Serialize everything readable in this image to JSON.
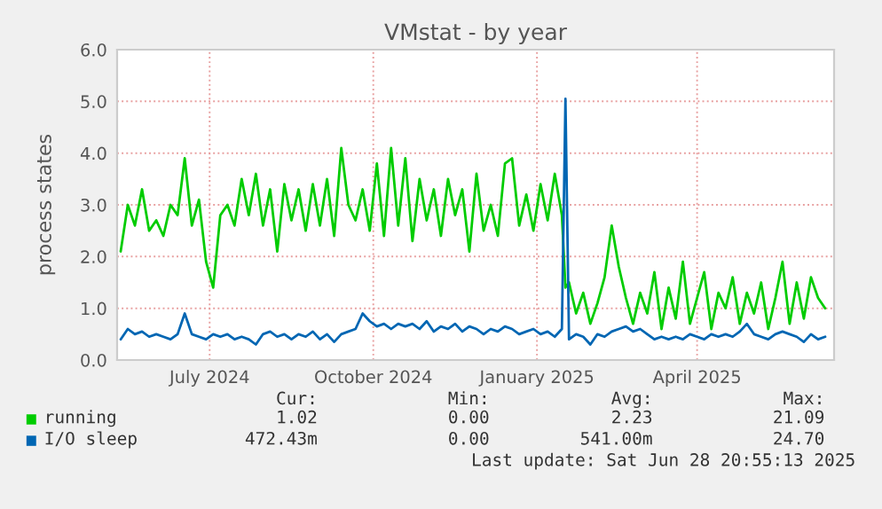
{
  "chart_data": {
    "type": "line",
    "title": "VMstat - by year",
    "ylabel": "process states",
    "x": [
      "2024-05-27",
      "2024-05-31",
      "2024-06-04",
      "2024-06-08",
      "2024-06-12",
      "2024-06-16",
      "2024-06-20",
      "2024-06-24",
      "2024-06-28",
      "2024-07-02",
      "2024-07-06",
      "2024-07-10",
      "2024-07-14",
      "2024-07-18",
      "2024-07-22",
      "2024-07-26",
      "2024-07-30",
      "2024-08-03",
      "2024-08-07",
      "2024-08-11",
      "2024-08-15",
      "2024-08-19",
      "2024-08-23",
      "2024-08-27",
      "2024-08-31",
      "2024-09-04",
      "2024-09-08",
      "2024-09-12",
      "2024-09-16",
      "2024-09-20",
      "2024-09-24",
      "2024-09-28",
      "2024-10-02",
      "2024-10-06",
      "2024-10-10",
      "2024-10-14",
      "2024-10-18",
      "2024-10-22",
      "2024-10-26",
      "2024-10-30",
      "2024-11-03",
      "2024-11-07",
      "2024-11-11",
      "2024-11-15",
      "2024-11-19",
      "2024-11-23",
      "2024-11-27",
      "2024-12-01",
      "2024-12-05",
      "2024-12-09",
      "2024-12-13",
      "2024-12-17",
      "2024-12-21",
      "2024-12-25",
      "2024-12-29",
      "2025-01-02",
      "2025-01-06",
      "2025-01-10",
      "2025-01-14",
      "2025-01-18",
      "2025-01-22",
      "2025-01-26",
      "2025-01-30",
      "2025-02-01",
      "2025-02-03",
      "2025-02-07",
      "2025-02-11",
      "2025-02-15",
      "2025-02-19",
      "2025-02-23",
      "2025-02-27",
      "2025-03-03",
      "2025-03-07",
      "2025-03-11",
      "2025-03-15",
      "2025-03-19",
      "2025-03-23",
      "2025-03-27",
      "2025-03-31",
      "2025-04-04",
      "2025-04-08",
      "2025-04-12",
      "2025-04-16",
      "2025-04-20",
      "2025-04-24",
      "2025-04-28",
      "2025-05-02",
      "2025-05-06",
      "2025-05-10",
      "2025-05-14",
      "2025-05-18",
      "2025-05-22",
      "2025-05-26",
      "2025-05-30",
      "2025-06-03",
      "2025-06-07",
      "2025-06-11",
      "2025-06-15",
      "2025-06-19",
      "2025-06-23",
      "2025-06-27"
    ],
    "series": [
      {
        "name": "running",
        "color": "#00cc00",
        "values": [
          2.1,
          3.0,
          2.6,
          3.3,
          2.5,
          2.7,
          2.4,
          3.0,
          2.8,
          3.9,
          2.6,
          3.1,
          1.9,
          1.4,
          2.8,
          3.0,
          2.6,
          3.5,
          2.8,
          3.6,
          2.6,
          3.3,
          2.1,
          3.4,
          2.7,
          3.3,
          2.5,
          3.4,
          2.6,
          3.5,
          2.4,
          4.1,
          3.0,
          2.7,
          3.3,
          2.5,
          3.8,
          2.4,
          4.1,
          2.6,
          3.9,
          2.3,
          3.5,
          2.7,
          3.3,
          2.4,
          3.5,
          2.8,
          3.3,
          2.1,
          3.6,
          2.5,
          3.0,
          2.4,
          3.8,
          3.9,
          2.6,
          3.2,
          2.5,
          3.4,
          2.7,
          3.6,
          2.8,
          1.4,
          1.5,
          0.9,
          1.3,
          0.7,
          1.1,
          1.6,
          2.6,
          1.8,
          1.2,
          0.7,
          1.3,
          0.9,
          1.7,
          0.6,
          1.4,
          0.8,
          1.9,
          0.7,
          1.2,
          1.7,
          0.6,
          1.3,
          1.0,
          1.6,
          0.7,
          1.3,
          0.9,
          1.5,
          0.6,
          1.2,
          1.9,
          0.7,
          1.5,
          0.8,
          1.6,
          1.2,
          1.0
        ]
      },
      {
        "name": "I/O sleep",
        "color": "#0066b3",
        "values": [
          0.4,
          0.6,
          0.5,
          0.55,
          0.45,
          0.5,
          0.45,
          0.4,
          0.5,
          0.9,
          0.5,
          0.45,
          0.4,
          0.5,
          0.45,
          0.5,
          0.4,
          0.45,
          0.4,
          0.3,
          0.5,
          0.55,
          0.45,
          0.5,
          0.4,
          0.5,
          0.45,
          0.55,
          0.4,
          0.5,
          0.35,
          0.5,
          0.55,
          0.6,
          0.9,
          0.75,
          0.65,
          0.7,
          0.6,
          0.7,
          0.65,
          0.7,
          0.6,
          0.75,
          0.55,
          0.65,
          0.6,
          0.7,
          0.55,
          0.65,
          0.6,
          0.5,
          0.6,
          0.55,
          0.65,
          0.6,
          0.5,
          0.55,
          0.6,
          0.5,
          0.55,
          0.45,
          0.6,
          5.05,
          0.4,
          0.5,
          0.45,
          0.3,
          0.5,
          0.45,
          0.55,
          0.6,
          0.65,
          0.55,
          0.6,
          0.5,
          0.4,
          0.45,
          0.4,
          0.45,
          0.4,
          0.5,
          0.45,
          0.4,
          0.5,
          0.45,
          0.5,
          0.45,
          0.55,
          0.7,
          0.5,
          0.45,
          0.4,
          0.5,
          0.55,
          0.5,
          0.45,
          0.35,
          0.5,
          0.4,
          0.45
        ]
      }
    ],
    "xlim": [
      "2024-05-25",
      "2025-07-02"
    ],
    "xticks": [
      {
        "value": "2024-07-16",
        "label": "July 2024"
      },
      {
        "value": "2024-10-16",
        "label": "October 2024"
      },
      {
        "value": "2025-01-16",
        "label": "January 2025"
      },
      {
        "value": "2025-04-16",
        "label": "April 2025"
      }
    ],
    "ylim": [
      0,
      6
    ],
    "yticks": [
      {
        "value": 0,
        "label": "0.0"
      },
      {
        "value": 1,
        "label": "1.0"
      },
      {
        "value": 2,
        "label": "2.0"
      },
      {
        "value": 3,
        "label": "3.0"
      },
      {
        "value": 4,
        "label": "4.0"
      },
      {
        "value": 5,
        "label": "5.0"
      },
      {
        "value": 6,
        "label": "6.0"
      }
    ],
    "grid": true,
    "legend": "bottom",
    "annotations": [
      "Cur:",
      "Min:",
      "Avg:",
      "Max:",
      "1.02",
      "0.00",
      "2.23",
      "21.09",
      "472.43m",
      "0.00",
      "541.00m",
      "24.70",
      "Last update: Sat Jun 28 20:55:13 2025"
    ]
  }
}
